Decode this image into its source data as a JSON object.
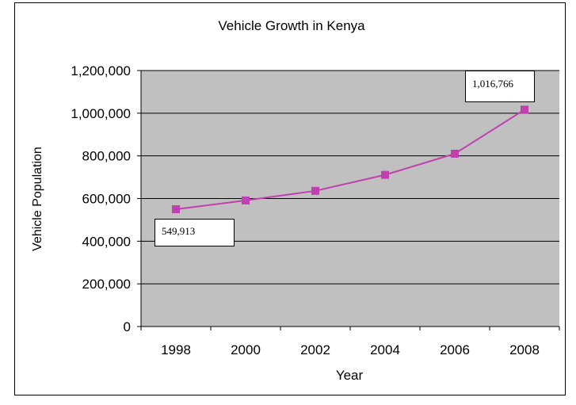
{
  "chart_data": {
    "type": "line",
    "title": "Vehicle Growth in Kenya",
    "xlabel": "Year",
    "ylabel": "Vehicle Population",
    "x": [
      "1998",
      "2000",
      "2002",
      "2004",
      "2006",
      "2008"
    ],
    "series": [
      {
        "values": [
          549913,
          591000,
          636000,
          711000,
          810000,
          1016766
        ],
        "color": "#c040b0",
        "marker": "square"
      }
    ],
    "ylim": [
      0,
      1200000
    ],
    "yticks": [
      "0",
      "200,000",
      "400,000",
      "600,000",
      "800,000",
      "1,000,000",
      "1,200,000"
    ],
    "grid": "horizontal",
    "plot_background": "#c0c0c0",
    "annotations": [
      {
        "text": "549,913",
        "point_index": 0
      },
      {
        "text": "1,016,766",
        "point_index": 5
      }
    ]
  }
}
